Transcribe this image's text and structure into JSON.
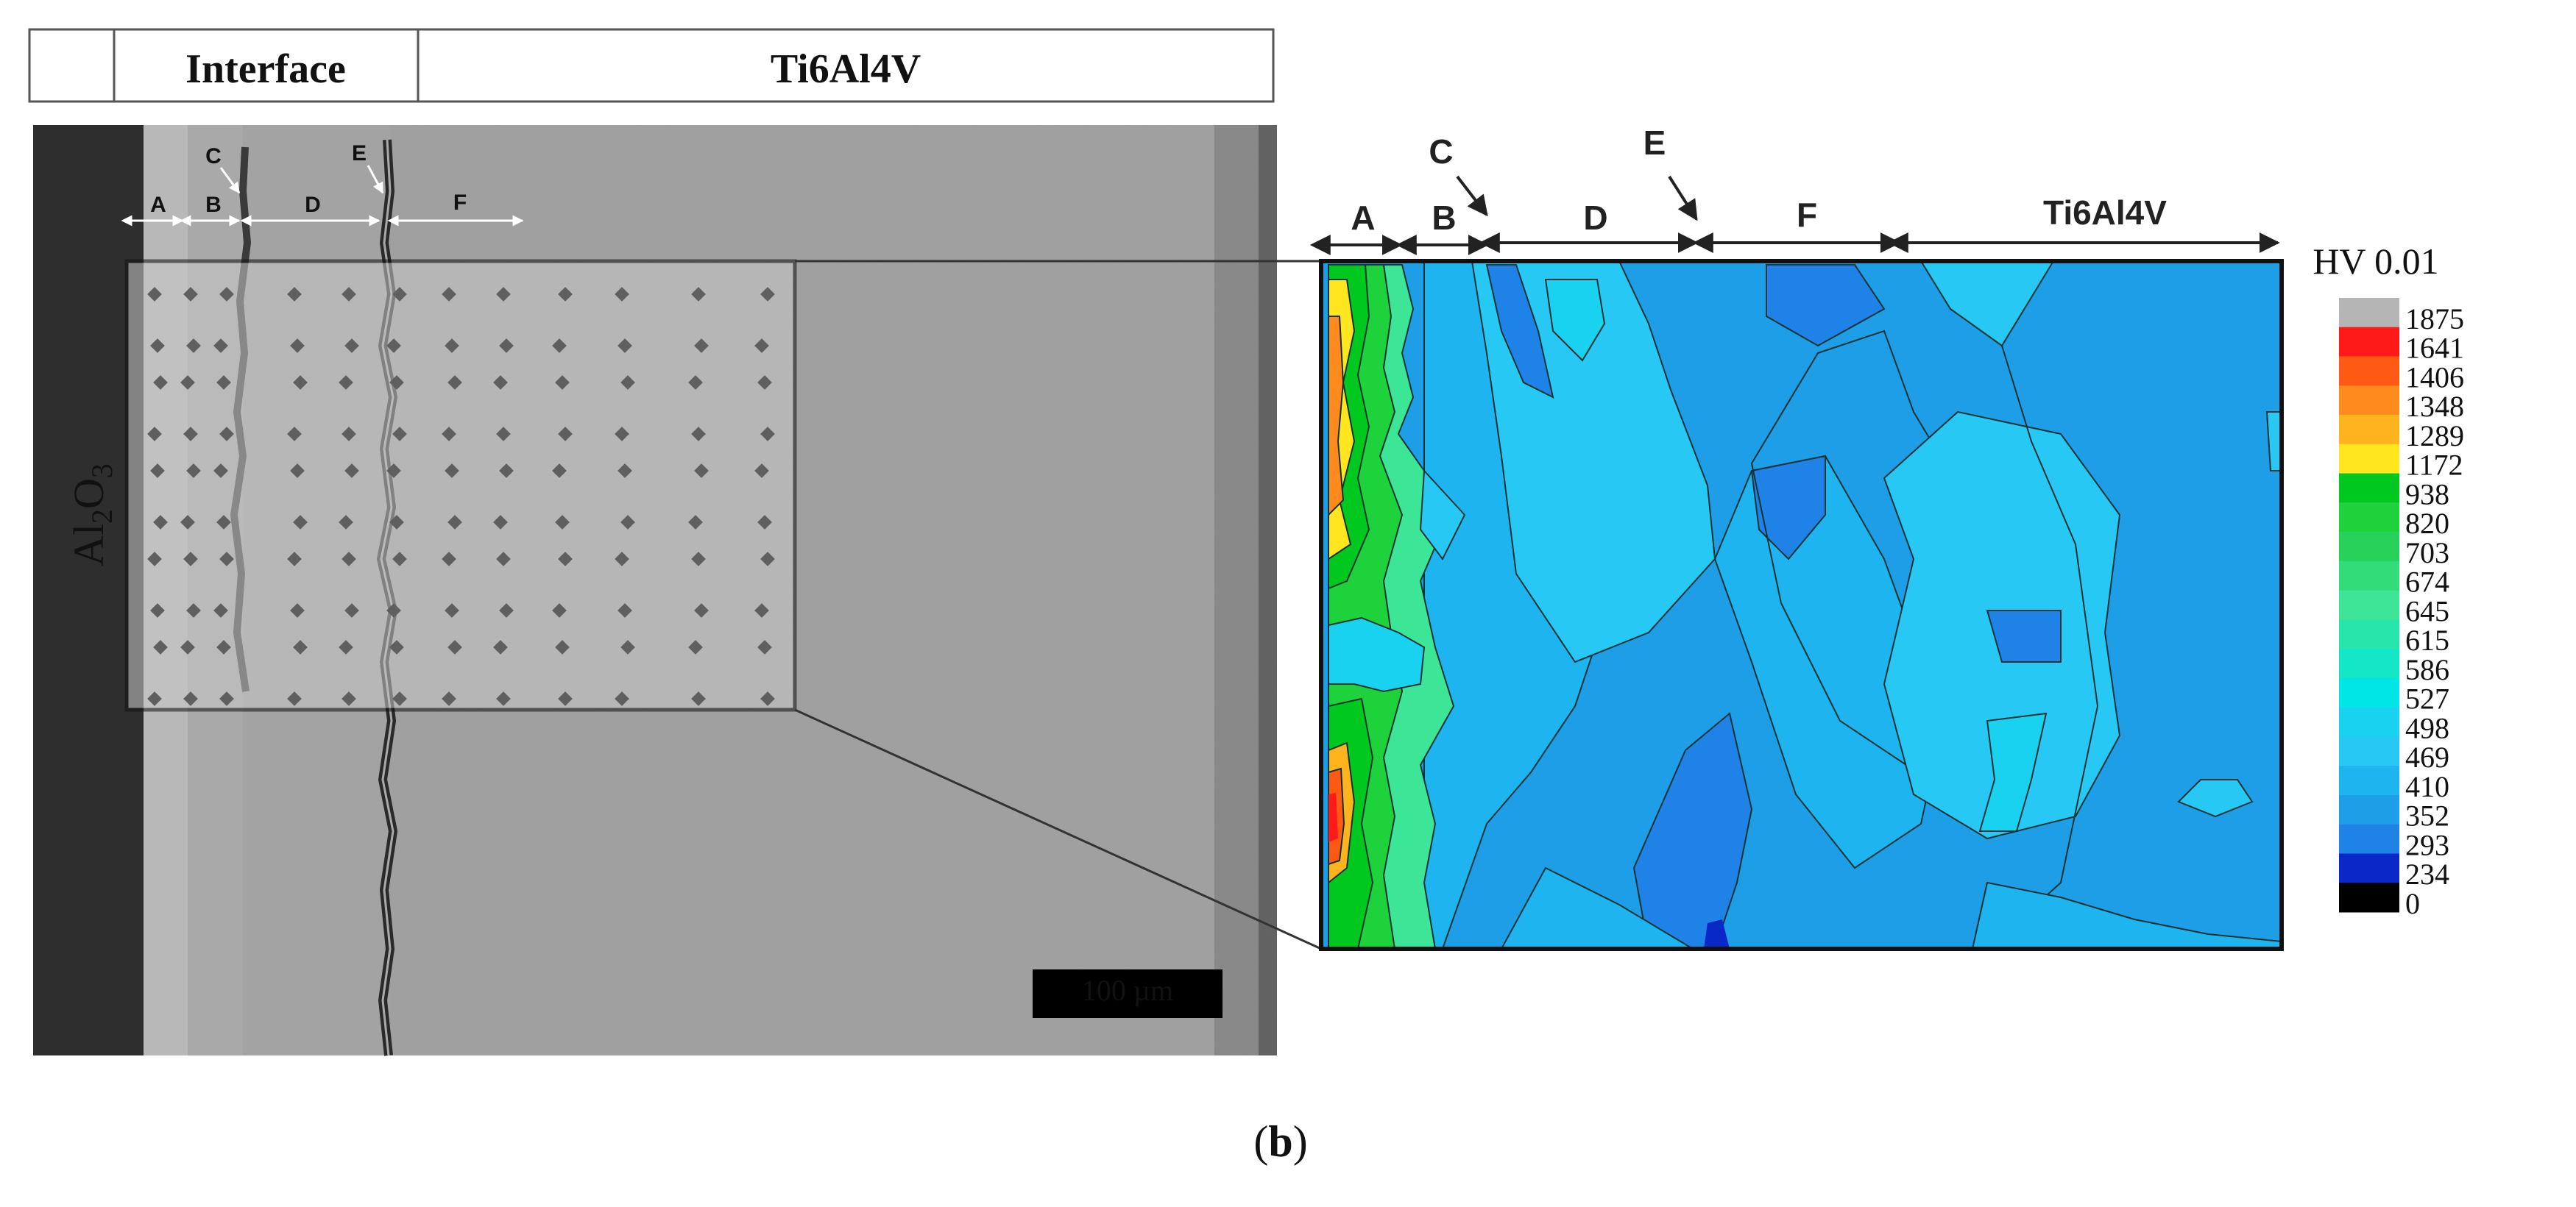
{
  "figure": {
    "caption_prefix": "(",
    "caption_letter": "b",
    "caption_suffix": ")"
  },
  "header_bar": {
    "cells": [
      "",
      "Interface",
      "Ti6Al4V"
    ]
  },
  "micrograph": {
    "substrate_label": "Al2O3",
    "zone_labels": [
      "A",
      "B",
      "C",
      "D",
      "E",
      "F"
    ],
    "scale_bar_label": "100 µm"
  },
  "hardness_map": {
    "zone_labels": [
      "A",
      "B",
      "C",
      "D",
      "E",
      "F"
    ],
    "region_label": "Ti6Al4V"
  },
  "colorbar": {
    "title": "HV 0.01",
    "ticks": [
      "1875",
      "1641",
      "1406",
      "1348",
      "1289",
      "1172",
      "938",
      "820",
      "703",
      "674",
      "645",
      "615",
      "586",
      "527",
      "498",
      "469",
      "410",
      "352",
      "293",
      "234",
      "0"
    ],
    "colors": [
      "#b5b5b5",
      "#ff1a1a",
      "#ff5a14",
      "#ff8a1e",
      "#ffb41e",
      "#ffe61e",
      "#00c81e",
      "#1ed23c",
      "#28d25a",
      "#32dc78",
      "#3ce696",
      "#28e6aa",
      "#14e6c8",
      "#00e6e6",
      "#19d2f0",
      "#28c8f5",
      "#1eb4f0",
      "#1e9ee6",
      "#1e82e6",
      "#0a28c8",
      "#000000"
    ]
  }
}
